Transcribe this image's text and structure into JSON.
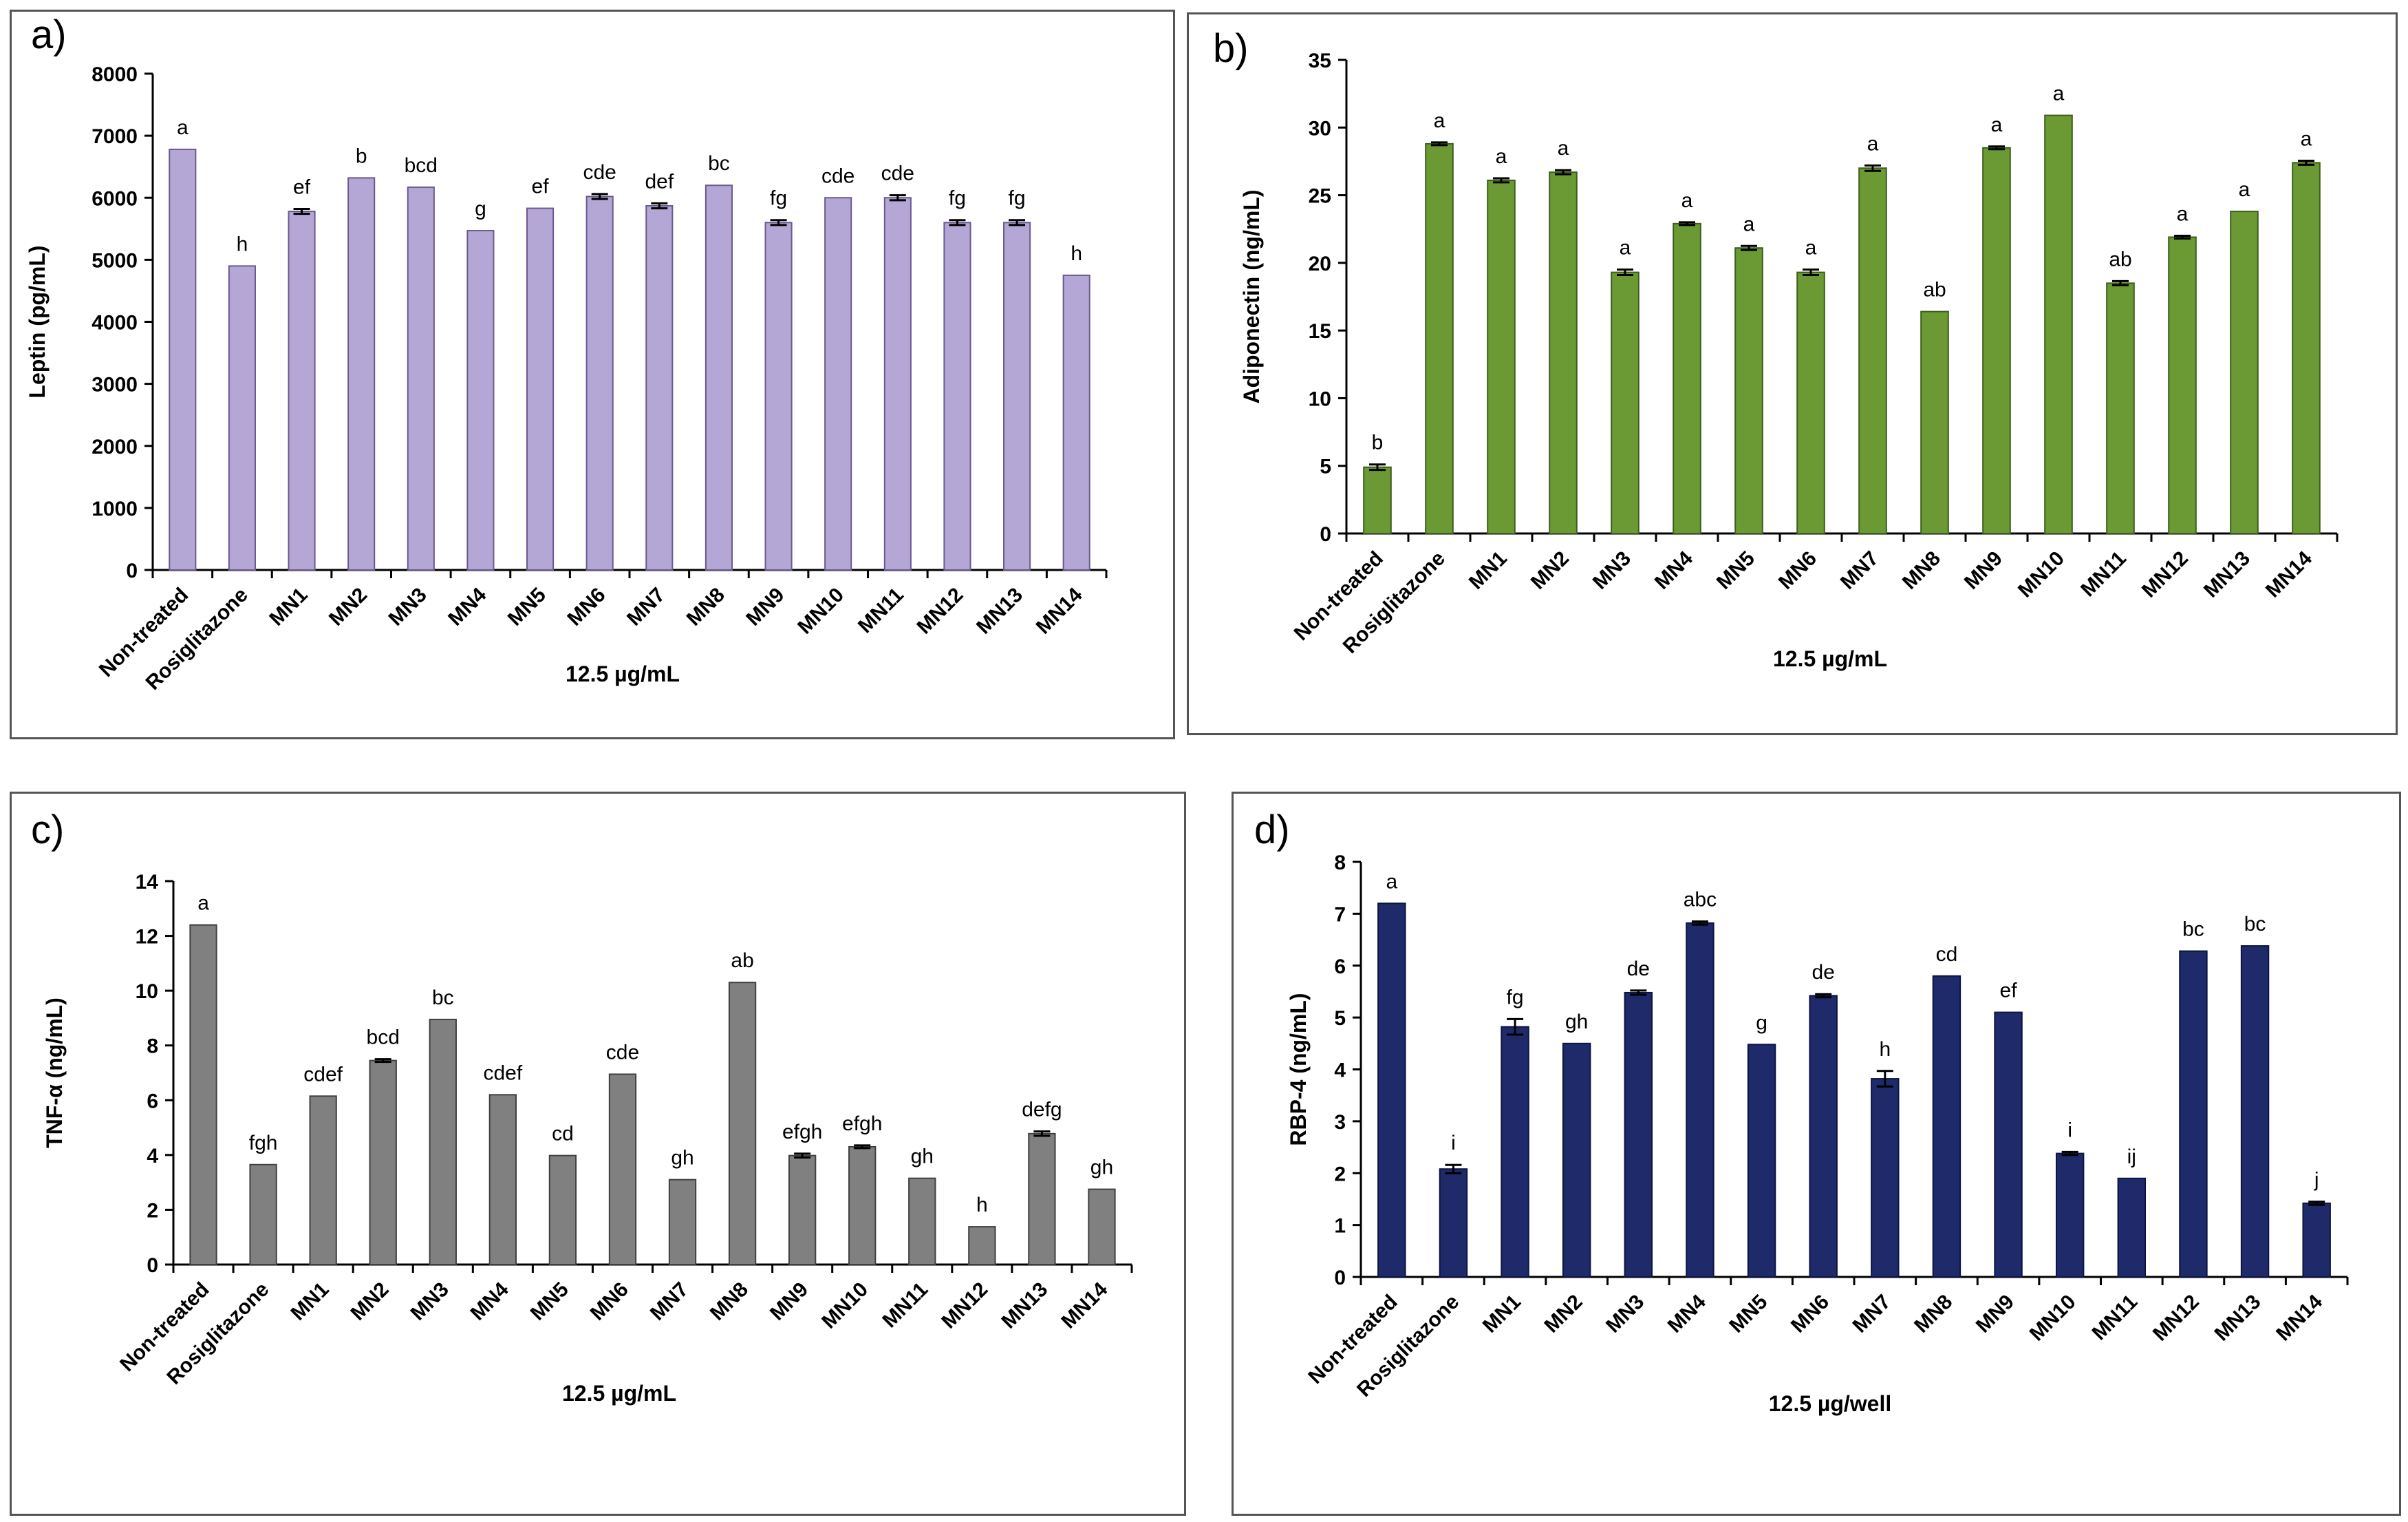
{
  "chart_data": [
    {
      "panel_label": "a)",
      "type": "bar",
      "categories": [
        "Non-treated",
        "Rosiglitazone",
        "MN1",
        "MN2",
        "MN3",
        "MN4",
        "MN5",
        "MN6",
        "MN7",
        "MN8",
        "MN9",
        "MN10",
        "MN11",
        "MN12",
        "MN13",
        "MN14"
      ],
      "values": [
        6780,
        4900,
        5780,
        6320,
        6170,
        5470,
        5830,
        6020,
        5870,
        6200,
        5600,
        6000,
        6000,
        5600,
        5600,
        4750
      ],
      "errors": [
        0,
        0,
        40,
        0,
        0,
        0,
        0,
        40,
        40,
        0,
        40,
        0,
        40,
        40,
        40,
        0
      ],
      "letters": [
        "a",
        "h",
        "ef",
        "b",
        "bcd",
        "g",
        "ef",
        "cde",
        "def",
        "bc",
        "fg",
        "cde",
        "cde",
        "fg",
        "fg",
        "h"
      ],
      "yticks": [
        "0",
        "1000",
        "2000",
        "3000",
        "4000",
        "5000",
        "6000",
        "7000",
        "8000"
      ],
      "ylim": [
        0,
        8000
      ],
      "ylabel": "Leptin (pg/mL)",
      "xlabel": "12.5 µg/mL",
      "color": "#b4a7d6",
      "edge": "#6b5a8e"
    },
    {
      "panel_label": "b)",
      "type": "bar",
      "categories": [
        "Non-treated",
        "Rosiglitazone",
        "MN1",
        "MN2",
        "MN3",
        "MN4",
        "MN5",
        "MN6",
        "MN7",
        "MN8",
        "MN9",
        "MN10",
        "MN11",
        "MN12",
        "MN13",
        "MN14"
      ],
      "values": [
        4.9,
        28.8,
        26.1,
        26.7,
        19.3,
        22.9,
        21.1,
        19.3,
        27.0,
        16.4,
        28.5,
        30.9,
        18.5,
        21.9,
        23.8,
        27.4
      ],
      "errors": [
        0.2,
        0.1,
        0.15,
        0.15,
        0.2,
        0.1,
        0.15,
        0.2,
        0.2,
        0,
        0.1,
        0,
        0.15,
        0.1,
        0,
        0.15
      ],
      "letters": [
        "b",
        "a",
        "a",
        "a",
        "a",
        "a",
        "a",
        "a",
        "a",
        "ab",
        "a",
        "a",
        "ab",
        "a",
        "a",
        "a"
      ],
      "yticks": [
        "0",
        "5",
        "10",
        "15",
        "20",
        "25",
        "30",
        "35"
      ],
      "ylim": [
        0,
        35
      ],
      "ylabel": "Adiponectin (ng/mL)",
      "xlabel": "12.5 µg/mL",
      "color": "#6b9a34",
      "edge": "#3d5e1c"
    },
    {
      "panel_label": "c)",
      "type": "bar",
      "categories": [
        "Non-treated",
        "Rosiglitazone",
        "MN1",
        "MN2",
        "MN3",
        "MN4",
        "MN5",
        "MN6",
        "MN7",
        "MN8",
        "MN9",
        "MN10",
        "MN11",
        "MN12",
        "MN13",
        "MN14"
      ],
      "values": [
        12.4,
        3.65,
        6.15,
        7.45,
        8.95,
        6.2,
        3.98,
        6.95,
        3.1,
        10.3,
        3.98,
        4.3,
        3.15,
        1.38,
        4.78,
        2.75
      ],
      "errors": [
        0,
        0,
        0,
        0.05,
        0,
        0,
        0,
        0,
        0,
        0,
        0.07,
        0.05,
        0,
        0,
        0.08,
        0
      ],
      "letters": [
        "a",
        "fgh",
        "cdef",
        "bcd",
        "bc",
        "cdef",
        "cd",
        "cde",
        "gh",
        "ab",
        "efgh",
        "efgh",
        "gh",
        "h",
        "defg",
        "gh"
      ],
      "yticks": [
        "0",
        "2",
        "4",
        "6",
        "8",
        "10",
        "12",
        "14"
      ],
      "ylim": [
        0,
        14
      ],
      "ylabel": "TNF-α (ng/mL)",
      "xlabel": "12.5 µg/mL",
      "color": "#808080",
      "edge": "#404040"
    },
    {
      "panel_label": "d)",
      "type": "bar",
      "categories": [
        "Non-treated",
        "Rosiglitazone",
        "MN1",
        "MN2",
        "MN3",
        "MN4",
        "MN5",
        "MN6",
        "MN7",
        "MN8",
        "MN9",
        "MN10",
        "MN11",
        "MN12",
        "MN13",
        "MN14"
      ],
      "values": [
        7.2,
        2.08,
        4.82,
        4.5,
        5.48,
        6.82,
        4.48,
        5.42,
        3.82,
        5.8,
        5.1,
        2.38,
        1.9,
        6.28,
        6.38,
        1.42
      ],
      "errors": [
        0,
        0.08,
        0.15,
        0,
        0.04,
        0.03,
        0,
        0.03,
        0.15,
        0,
        0,
        0.03,
        0,
        0,
        0,
        0.03
      ],
      "letters": [
        "a",
        "i",
        "fg",
        "gh",
        "de",
        "abc",
        "g",
        "de",
        "h",
        "cd",
        "ef",
        "i",
        "ij",
        "bc",
        "bc",
        "j"
      ],
      "yticks": [
        "0",
        "1",
        "2",
        "3",
        "4",
        "5",
        "6",
        "7",
        "8"
      ],
      "ylim": [
        0,
        8
      ],
      "ylabel": "RBP-4 (ng/mL)",
      "xlabel": "12.5 µg/well",
      "color": "#1f2a6b",
      "edge": "#0d1440"
    }
  ]
}
